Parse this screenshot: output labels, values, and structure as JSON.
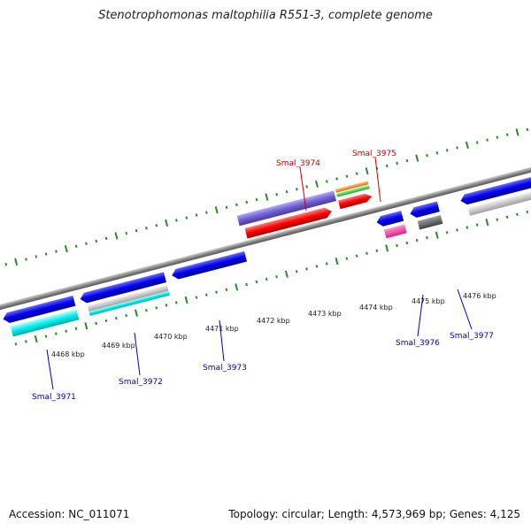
{
  "title": "Stenotrophomonas maltophilia R551-3, complete genome",
  "footer": {
    "accession": "Accession: NC_011071",
    "summary": "Topology: circular; Length: 4,573,969 bp; Genes: 4,125"
  },
  "colors": {
    "forward_label": "#cc0000",
    "reverse_label": "#0000aa",
    "backbone": "#888888",
    "tick": "#2a8a2a"
  },
  "axis_ticks": [
    "4468 kbp",
    "4469 kbp",
    "4470 kbp",
    "4471 kbp",
    "4472 kbp",
    "4473 kbp",
    "4474 kbp",
    "4475 kbp",
    "4476 kbp"
  ],
  "gene_labels": {
    "forward": [
      "Smal_3974",
      "Smal_3975"
    ],
    "reverse": [
      "Smal_3971",
      "Smal_3972",
      "Smal_3973",
      "Smal_3976",
      "Smal_3977"
    ]
  }
}
